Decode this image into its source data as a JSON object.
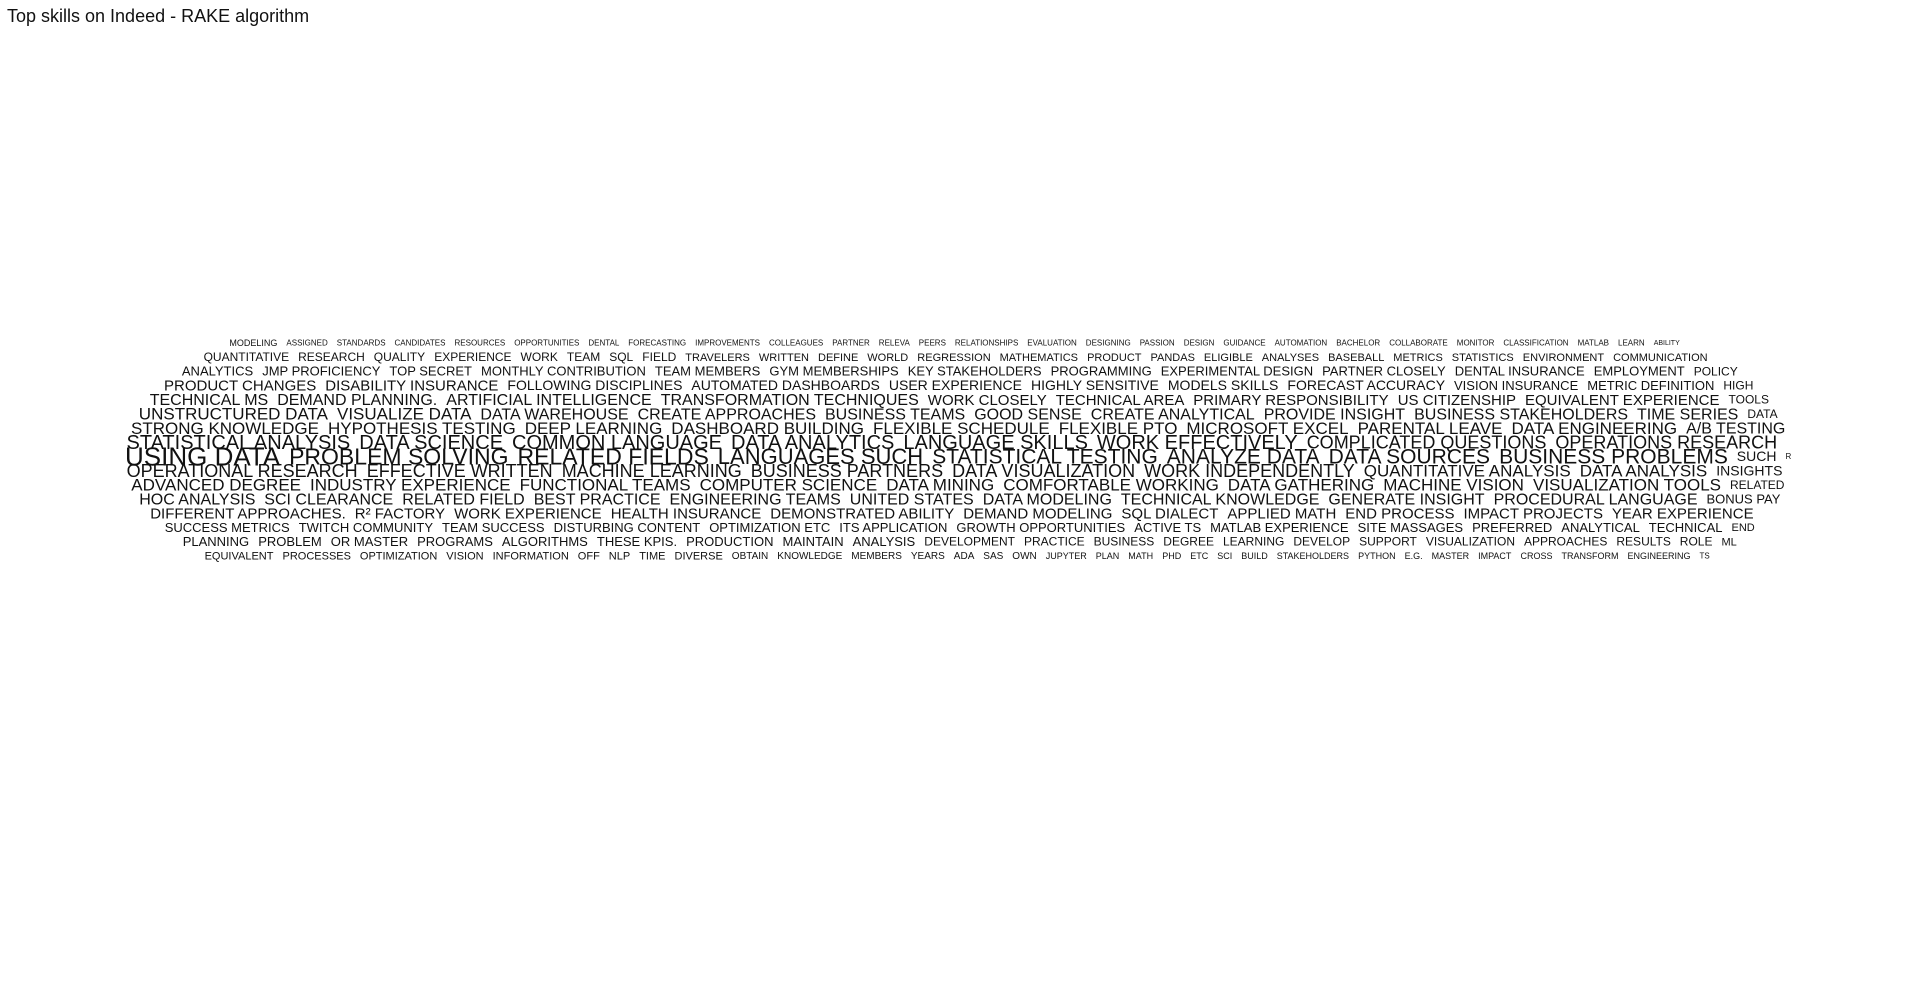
{
  "chart_data": {
    "type": "wordcloud",
    "title": "Top skills on Indeed - RAKE algorithm",
    "words": [
      {
        "text": "USING DATA",
        "weight": 26
      },
      {
        "text": "PROBLEM SOLVING",
        "weight": 23
      },
      {
        "text": "RELATED FIELDS",
        "weight": 23
      },
      {
        "text": "LANGUAGES SUCH",
        "weight": 22
      },
      {
        "text": "STATISTICAL TESTING",
        "weight": 21
      },
      {
        "text": "ANALYZE DATA",
        "weight": 21
      },
      {
        "text": "DATA SOURCES",
        "weight": 21
      },
      {
        "text": "BUSINESS PROBLEMS",
        "weight": 21
      },
      {
        "text": "STATISTICAL ANALYSIS",
        "weight": 20
      },
      {
        "text": "DATA SCIENCE",
        "weight": 20
      },
      {
        "text": "COMMON LANGUAGE",
        "weight": 20
      },
      {
        "text": "DATA ANALYTICS",
        "weight": 20
      },
      {
        "text": "LANGUAGE SKILLS",
        "weight": 20
      },
      {
        "text": "WORK EFFECTIVELY",
        "weight": 20
      },
      {
        "text": "COMPLICATED QUESTIONS",
        "weight": 18
      },
      {
        "text": "OPERATIONS RESEARCH",
        "weight": 18
      },
      {
        "text": "OPERATIONAL RESEARCH",
        "weight": 18
      },
      {
        "text": "EFFECTIVE WRITTEN",
        "weight": 18
      },
      {
        "text": "MACHINE LEARNING",
        "weight": 18
      },
      {
        "text": "BUSINESS PARTNERS",
        "weight": 18
      },
      {
        "text": "DATA VISUALIZATION",
        "weight": 18
      },
      {
        "text": "WORK INDEPENDENTLY",
        "weight": 18
      },
      {
        "text": "QUANTITATIVE ANALYSIS",
        "weight": 17
      },
      {
        "text": "DATA ANALYSIS",
        "weight": 17
      },
      {
        "text": "STRONG KNOWLEDGE",
        "weight": 17
      },
      {
        "text": "HYPOTHESIS TESTING",
        "weight": 17
      },
      {
        "text": "DEEP LEARNING",
        "weight": 17
      },
      {
        "text": "DASHBOARD BUILDING",
        "weight": 17
      },
      {
        "text": "FLEXIBLE SCHEDULE",
        "weight": 17
      },
      {
        "text": "FLEXIBLE PTO",
        "weight": 17
      },
      {
        "text": "MICROSOFT EXCEL",
        "weight": 17
      },
      {
        "text": "PARENTAL LEAVE",
        "weight": 17
      },
      {
        "text": "DATA ENGINEERING",
        "weight": 17
      },
      {
        "text": "ADVANCED DEGREE",
        "weight": 17
      },
      {
        "text": "INDUSTRY EXPERIENCE",
        "weight": 17
      },
      {
        "text": "FUNCTIONAL TEAMS",
        "weight": 17
      },
      {
        "text": "COMPUTER SCIENCE",
        "weight": 17
      },
      {
        "text": "DATA MINING",
        "weight": 17
      },
      {
        "text": "COMFORTABLE WORKING",
        "weight": 17
      },
      {
        "text": "DATA GATHERING",
        "weight": 17
      },
      {
        "text": "MACHINE VISION",
        "weight": 17
      },
      {
        "text": "VISUALIZATION TOOLS",
        "weight": 17
      },
      {
        "text": "UNSTRUCTURED DATA",
        "weight": 17
      },
      {
        "text": "VISUALIZE DATA",
        "weight": 17
      },
      {
        "text": "DATA WAREHOUSE",
        "weight": 16
      },
      {
        "text": "A/B TESTING",
        "weight": 16
      },
      {
        "text": "CREATE APPROACHES",
        "weight": 16
      },
      {
        "text": "BUSINESS TEAMS",
        "weight": 16
      },
      {
        "text": "GOOD SENSE",
        "weight": 16
      },
      {
        "text": "CREATE ANALYTICAL",
        "weight": 16
      },
      {
        "text": "PROVIDE INSIGHT",
        "weight": 16
      },
      {
        "text": "BUSINESS STAKEHOLDERS",
        "weight": 16
      },
      {
        "text": "TIME SERIES",
        "weight": 16
      },
      {
        "text": "HOC ANALYSIS",
        "weight": 16
      },
      {
        "text": "SCI CLEARANCE",
        "weight": 16
      },
      {
        "text": "RELATED FIELD",
        "weight": 16
      },
      {
        "text": "BEST PRACTICE",
        "weight": 16
      },
      {
        "text": "ENGINEERING TEAMS",
        "weight": 16
      },
      {
        "text": "UNITED STATES",
        "weight": 16
      },
      {
        "text": "DATA MODELING",
        "weight": 16
      },
      {
        "text": "TECHNICAL KNOWLEDGE",
        "weight": 16
      },
      {
        "text": "GENERATE INSIGHT",
        "weight": 16
      },
      {
        "text": "PROCEDURAL LANGUAGE",
        "weight": 16
      },
      {
        "text": "TECHNICAL MS",
        "weight": 16
      },
      {
        "text": "DEMAND PLANNING.",
        "weight": 16
      },
      {
        "text": "ARTIFICIAL INTELLIGENCE",
        "weight": 16
      },
      {
        "text": "TRANSFORMATION TECHNIQUES",
        "weight": 16
      },
      {
        "text": "WORK CLOSELY",
        "weight": 15
      },
      {
        "text": "TECHNICAL AREA",
        "weight": 15
      },
      {
        "text": "PRIMARY RESPONSIBILITY",
        "weight": 15
      },
      {
        "text": "US CITIZENSHIP",
        "weight": 15
      },
      {
        "text": "EQUIVALENT EXPERIENCE",
        "weight": 15
      },
      {
        "text": "DIFFERENT APPROACHES.",
        "weight": 15
      },
      {
        "text": "R² FACTORY",
        "weight": 15
      },
      {
        "text": "WORK EXPERIENCE",
        "weight": 15
      },
      {
        "text": "HEALTH INSURANCE",
        "weight": 15
      },
      {
        "text": "DEMONSTRATED ABILITY",
        "weight": 15
      },
      {
        "text": "DEMAND MODELING",
        "weight": 15
      },
      {
        "text": "SQL DIALECT",
        "weight": 15
      },
      {
        "text": "APPLIED MATH",
        "weight": 15
      },
      {
        "text": "END PROCESS",
        "weight": 15
      },
      {
        "text": "IMPACT PROJECTS",
        "weight": 15
      },
      {
        "text": "YEAR EXPERIENCE",
        "weight": 15
      },
      {
        "text": "PRODUCT CHANGES",
        "weight": 15
      },
      {
        "text": "DISABILITY INSURANCE",
        "weight": 15
      },
      {
        "text": "FOLLOWING DISCIPLINES",
        "weight": 14
      },
      {
        "text": "AUTOMATED DASHBOARDS",
        "weight": 14
      },
      {
        "text": "USER EXPERIENCE",
        "weight": 14
      },
      {
        "text": "HIGHLY SENSITIVE",
        "weight": 14
      },
      {
        "text": "MODELS SKILLS",
        "weight": 14
      },
      {
        "text": "FORECAST ACCURACY",
        "weight": 14
      },
      {
        "text": "INSIGHTS",
        "weight": 14
      },
      {
        "text": "BONUS PAY",
        "weight": 13
      },
      {
        "text": "VISION INSURANCE",
        "weight": 13
      },
      {
        "text": "METRIC DEFINITION",
        "weight": 13
      },
      {
        "text": "SUCCESS METRICS",
        "weight": 13
      },
      {
        "text": "TWITCH COMMUNITY",
        "weight": 13
      },
      {
        "text": "TEAM SUCCESS",
        "weight": 13
      },
      {
        "text": "DISTURBING CONTENT",
        "weight": 13
      },
      {
        "text": "OPTIMIZATION ETC",
        "weight": 13
      },
      {
        "text": "ITS APPLICATION",
        "weight": 13
      },
      {
        "text": "GROWTH OPPORTUNITIES",
        "weight": 13
      },
      {
        "text": "ACTIVE TS",
        "weight": 13
      },
      {
        "text": "MATLAB EXPERIENCE",
        "weight": 13
      },
      {
        "text": "SITE MASSAGES",
        "weight": 13
      },
      {
        "text": "PREFERRED",
        "weight": 13
      },
      {
        "text": "ANALYTICAL",
        "weight": 13
      },
      {
        "text": "TECHNICAL",
        "weight": 13
      },
      {
        "text": "ANALYTICS",
        "weight": 13
      },
      {
        "text": "JMP PROFICIENCY",
        "weight": 13
      },
      {
        "text": "TOP SECRET",
        "weight": 13
      },
      {
        "text": "MONTHLY CONTRIBUTION",
        "weight": 13
      },
      {
        "text": "TEAM MEMBERS",
        "weight": 13
      },
      {
        "text": "GYM MEMBERSHIPS",
        "weight": 13
      },
      {
        "text": "KEY STAKEHOLDERS",
        "weight": 13
      },
      {
        "text": "PROGRAMMING",
        "weight": 13
      },
      {
        "text": "EXPERIMENTAL DESIGN",
        "weight": 13
      },
      {
        "text": "PARTNER CLOSELY",
        "weight": 13
      },
      {
        "text": "DENTAL INSURANCE",
        "weight": 13
      },
      {
        "text": "EMPLOYMENT",
        "weight": 13
      },
      {
        "text": "PLANNING",
        "weight": 13
      },
      {
        "text": "PROBLEM",
        "weight": 13
      },
      {
        "text": "OR MASTER",
        "weight": 13
      },
      {
        "text": "PROGRAMS",
        "weight": 13
      },
      {
        "text": "ALGORITHMS",
        "weight": 13
      },
      {
        "text": "THESE KPIS.",
        "weight": 13
      },
      {
        "text": "PRODUCTION",
        "weight": 13
      },
      {
        "text": "MAINTAIN",
        "weight": 13
      },
      {
        "text": "ANALYSIS",
        "weight": 13
      },
      {
        "text": "DEVELOPMENT",
        "weight": 12
      },
      {
        "text": "PRACTICE",
        "weight": 12
      },
      {
        "text": "RELATED",
        "weight": 12
      },
      {
        "text": "TRAVELERS",
        "weight": 11
      },
      {
        "text": "WRITTEN",
        "weight": 11
      },
      {
        "text": "DEFINE",
        "weight": 11
      },
      {
        "text": "WORLD",
        "weight": 11
      },
      {
        "text": "REGRESSION",
        "weight": 11
      },
      {
        "text": "MATHEMATICS",
        "weight": 11
      },
      {
        "text": "BUSINESS",
        "weight": 12
      },
      {
        "text": "DEGREE",
        "weight": 12
      },
      {
        "text": "LEARNING",
        "weight": 12
      },
      {
        "text": "PRODUCT",
        "weight": 11
      },
      {
        "text": "PANDAS",
        "weight": 11
      },
      {
        "text": "END",
        "weight": 11
      },
      {
        "text": "DATA",
        "weight": 12
      },
      {
        "text": "TOOLS",
        "weight": 12
      },
      {
        "text": "ELIGIBLE",
        "weight": 11
      },
      {
        "text": "ANALYSES",
        "weight": 11
      },
      {
        "text": "DEVELOP",
        "weight": 12
      },
      {
        "text": "BASEBALL",
        "weight": 11
      },
      {
        "text": "OBTAIN",
        "weight": 10
      },
      {
        "text": "METRICS",
        "weight": 11
      },
      {
        "text": "POLICY",
        "weight": 12
      },
      {
        "text": "JUPYTER",
        "weight": 9
      },
      {
        "text": "SUPPORT",
        "weight": 12
      },
      {
        "text": "VISUALIZATION",
        "weight": 12
      },
      {
        "text": "APPROACHES",
        "weight": 12
      },
      {
        "text": "STATISTICS",
        "weight": 11
      },
      {
        "text": "RESULTS",
        "weight": 12
      },
      {
        "text": "ENVIRONMENT",
        "weight": 11
      },
      {
        "text": "COMMUNICATION",
        "weight": 11
      },
      {
        "text": "EQUIVALENT",
        "weight": 11
      },
      {
        "text": "KNOWLEDGE",
        "weight": 10
      },
      {
        "text": "PROCESSES",
        "weight": 11
      },
      {
        "text": "OPTIMIZATION",
        "weight": 11
      },
      {
        "text": "VISION",
        "weight": 11
      },
      {
        "text": "INFORMATION",
        "weight": 11
      },
      {
        "text": "ROLE",
        "weight": 12
      },
      {
        "text": "MEMBERS",
        "weight": 10
      },
      {
        "text": "QUANTITATIVE",
        "weight": 12
      },
      {
        "text": "RESEARCH",
        "weight": 12
      },
      {
        "text": "QUALITY",
        "weight": 12
      },
      {
        "text": "EXPERIENCE",
        "weight": 12
      },
      {
        "text": "WORK",
        "weight": 12
      },
      {
        "text": "TEAM",
        "weight": 12
      },
      {
        "text": "YEARS",
        "weight": 10
      },
      {
        "text": "HIGH",
        "weight": 12
      },
      {
        "text": "ML",
        "weight": 11
      },
      {
        "text": "SUCH",
        "weight": 14
      },
      {
        "text": "OFF",
        "weight": 11
      },
      {
        "text": "SQL",
        "weight": 12
      },
      {
        "text": "ADA",
        "weight": 10
      },
      {
        "text": "NLP",
        "weight": 11
      },
      {
        "text": "FIELD",
        "weight": 12
      },
      {
        "text": "TIME",
        "weight": 11
      },
      {
        "text": "PLAN",
        "weight": 9
      },
      {
        "text": "SAS",
        "weight": 10
      },
      {
        "text": "OWN",
        "weight": 10
      },
      {
        "text": "MATH",
        "weight": 9
      },
      {
        "text": "DIVERSE",
        "weight": 11
      },
      {
        "text": "PHD",
        "weight": 9
      },
      {
        "text": "ETC",
        "weight": 9
      },
      {
        "text": "SCI",
        "weight": 9
      },
      {
        "text": "BUILD",
        "weight": 9
      },
      {
        "text": "STAKEHOLDERS",
        "weight": 9
      },
      {
        "text": "PYTHON",
        "weight": 9
      },
      {
        "text": "E.G.",
        "weight": 9
      },
      {
        "text": "MASTER",
        "weight": 9
      },
      {
        "text": "IMPACT",
        "weight": 9
      },
      {
        "text": "CROSS",
        "weight": 9
      },
      {
        "text": "ASSIGNED",
        "weight": 8
      },
      {
        "text": "STANDARDS",
        "weight": 8
      },
      {
        "text": "CANDIDATES",
        "weight": 8
      },
      {
        "text": "RESOURCES",
        "weight": 8
      },
      {
        "text": "OPPORTUNITIES",
        "weight": 8
      },
      {
        "text": "DENTAL",
        "weight": 8
      },
      {
        "text": "FORECASTING",
        "weight": 8
      },
      {
        "text": "IMPROVEMENTS",
        "weight": 8
      },
      {
        "text": "TS",
        "weight": 8
      },
      {
        "text": "TRANSFORM",
        "weight": 9
      },
      {
        "text": "COLLEAGUES",
        "weight": 8
      },
      {
        "text": "PARTNER",
        "weight": 8
      },
      {
        "text": "RELEVA",
        "weight": 8
      },
      {
        "text": "PEERS",
        "weight": 8
      },
      {
        "text": "RELATIONSHIPS",
        "weight": 8
      },
      {
        "text": "ENGINEERING",
        "weight": 9
      },
      {
        "text": "EVALUATION",
        "weight": 8
      },
      {
        "text": "DESIGNING",
        "weight": 8
      },
      {
        "text": "PASSION",
        "weight": 8
      },
      {
        "text": "DESIGN",
        "weight": 8
      },
      {
        "text": "MODELING",
        "weight": 9
      },
      {
        "text": "GUIDANCE",
        "weight": 8
      },
      {
        "text": "AUTOMATION",
        "weight": 8
      },
      {
        "text": "BACHELOR",
        "weight": 8
      },
      {
        "text": "COLLABORATE",
        "weight": 8
      },
      {
        "text": "MONITOR",
        "weight": 8
      },
      {
        "text": "CLASSIFICATION",
        "weight": 8
      },
      {
        "text": "ABILITY",
        "weight": 7
      },
      {
        "text": "MATLAB",
        "weight": 8
      },
      {
        "text": "LEARN",
        "weight": 8
      },
      {
        "text": "R",
        "weight": 8
      }
    ]
  }
}
